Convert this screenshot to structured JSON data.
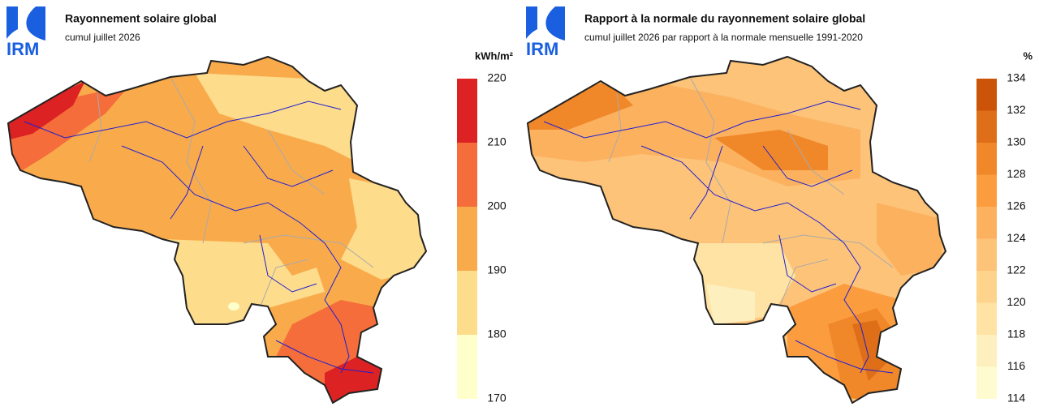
{
  "panels": [
    {
      "logo": "IRM",
      "title": "Rayonnement solaire global",
      "subtitle": "cumul juillet 2026",
      "unit": "kWh/m²",
      "legend": {
        "ticks": [
          170,
          180,
          190,
          200,
          210,
          220
        ],
        "colors": [
          "#ffffcc",
          "#fddc8c",
          "#f9ab4c",
          "#f46d3a",
          "#dc2222"
        ]
      }
    },
    {
      "logo": "IRM",
      "title": "Rapport à la normale du rayonnement solaire global",
      "subtitle": "cumul juillet 2026 par rapport à la normale mensuelle 1991-2020",
      "unit": "%",
      "legend": {
        "ticks": [
          114,
          116,
          118,
          120,
          122,
          124,
          126,
          128,
          130,
          132,
          134
        ],
        "colors": [
          "#fffbd0",
          "#feefbe",
          "#fee3a4",
          "#fed38c",
          "#fdc379",
          "#fcb15f",
          "#fb9d3f",
          "#f0882a",
          "#de6e17",
          "#cc5408"
        ]
      }
    }
  ]
}
